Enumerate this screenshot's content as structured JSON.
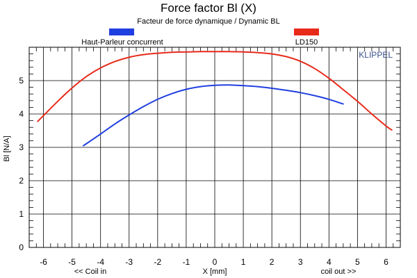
{
  "chart_data": {
    "type": "line",
    "title": "Force factor Bl (X)",
    "subtitle": "Facteur de force dynamique / Dynamic BL",
    "xlabel": "X [mm]",
    "ylabel": "Bl [N/A]",
    "xlim": [
      -6.5,
      6.5
    ],
    "ylim": [
      0,
      6
    ],
    "xticks": [
      -6,
      -5,
      -4,
      -3,
      -2,
      -1,
      0,
      1,
      2,
      3,
      4,
      5,
      6
    ],
    "yticks": [
      0,
      1,
      2,
      3,
      4,
      5
    ],
    "grid": true,
    "brand": "KLIPPEL",
    "annotations": {
      "left": "<< Coil in",
      "right": "coil out >>"
    },
    "series": [
      {
        "name": "Haut-Parleur concurrent",
        "color": "#1f3fe0",
        "x": [
          -4.6,
          -4.0,
          -3.5,
          -3.0,
          -2.5,
          -2.0,
          -1.5,
          -1.0,
          -0.5,
          0.0,
          0.5,
          1.0,
          1.5,
          2.0,
          2.5,
          3.0,
          3.5,
          4.0,
          4.5
        ],
        "y": [
          3.05,
          3.4,
          3.7,
          3.97,
          4.22,
          4.44,
          4.61,
          4.74,
          4.82,
          4.86,
          4.87,
          4.85,
          4.82,
          4.77,
          4.71,
          4.64,
          4.55,
          4.44,
          4.3
        ]
      },
      {
        "name": "LD150",
        "color": "#e82a1a",
        "x": [
          -6.2,
          -6.0,
          -5.5,
          -5.0,
          -4.5,
          -4.0,
          -3.5,
          -3.0,
          -2.5,
          -2.0,
          -1.5,
          -1.0,
          -0.5,
          0.0,
          0.5,
          1.0,
          1.5,
          2.0,
          2.5,
          3.0,
          3.5,
          4.0,
          4.5,
          5.0,
          5.5,
          6.0,
          6.2
        ],
        "y": [
          3.78,
          3.95,
          4.38,
          4.78,
          5.12,
          5.38,
          5.57,
          5.7,
          5.78,
          5.82,
          5.85,
          5.86,
          5.87,
          5.87,
          5.87,
          5.86,
          5.84,
          5.8,
          5.72,
          5.58,
          5.36,
          5.07,
          4.73,
          4.38,
          4.0,
          3.64,
          3.52
        ]
      }
    ]
  }
}
